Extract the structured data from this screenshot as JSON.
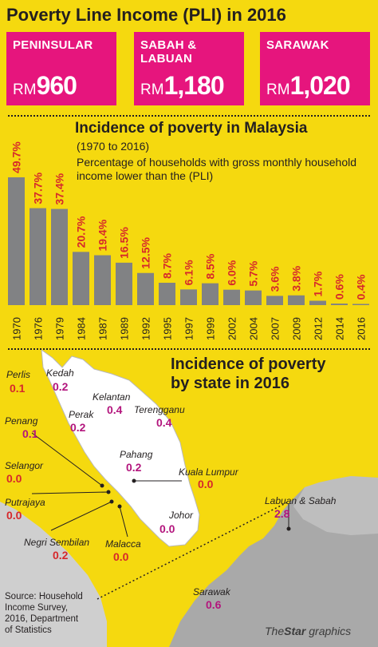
{
  "pli": {
    "title": "Poverty Line Income (PLI) in 2016",
    "boxes": [
      {
        "name_line1": "PENINSULAR",
        "name_line2": "",
        "currency": "RM",
        "value": "960"
      },
      {
        "name_line1": "SABAH &",
        "name_line2": "LABUAN",
        "currency": "RM",
        "value": "1,180"
      },
      {
        "name_line1": "SARAWAK",
        "name_line2": "",
        "currency": "RM",
        "value": "1,020"
      }
    ]
  },
  "chart_title": "Incidence of poverty in Malaysia",
  "chart_years": "(1970 to 2016)",
  "chart_desc_line1": "Percentage of households with gross monthly household",
  "chart_desc_line2": "income lower than the (PLI)",
  "chart_data": {
    "type": "bar",
    "title": "Incidence of poverty in Malaysia",
    "categories": [
      "1970",
      "1976",
      "1979",
      "1984",
      "1987",
      "1989",
      "1992",
      "1995",
      "1997",
      "1999",
      "2002",
      "2004",
      "2007",
      "2009",
      "2012",
      "2014",
      "2016"
    ],
    "values": [
      49.7,
      37.7,
      37.4,
      20.7,
      19.4,
      16.5,
      12.5,
      8.7,
      6.1,
      8.5,
      6.0,
      5.7,
      3.6,
      3.8,
      1.7,
      0.6,
      0.4
    ],
    "data_labels": [
      "49.7%",
      "37.7%",
      "37.4%",
      "20.7%",
      "19.4%",
      "16.5%",
      "12.5%",
      "8.7%",
      "6.1%",
      "8.5%",
      "6.0%",
      "5.7%",
      "3.6%",
      "3.8%",
      "1.7%",
      "0.6%",
      "0.4%"
    ],
    "xlabel": "",
    "ylabel": "",
    "ylim": [
      0,
      55
    ],
    "bar_color": "#818284",
    "label_color": "#d6282b"
  },
  "map": {
    "title_line1": "Incidence of poverty",
    "title_line2": "by state in 2016",
    "states": [
      {
        "name": "Perlis",
        "value": "0.1",
        "color": "red"
      },
      {
        "name": "Kedah",
        "value": "0.2",
        "color": "mag"
      },
      {
        "name": "Penang",
        "value": "0.1",
        "color": "mag"
      },
      {
        "name": "Perak",
        "value": "0.2",
        "color": "mag"
      },
      {
        "name": "Kelantan",
        "value": "0.4",
        "color": "mag"
      },
      {
        "name": "Terengganu",
        "value": "0.4",
        "color": "mag"
      },
      {
        "name": "Pahang",
        "value": "0.2",
        "color": "mag"
      },
      {
        "name": "Selangor",
        "value": "0.0",
        "color": "red"
      },
      {
        "name": "Kuala Lumpur",
        "value": "0.0",
        "color": "red"
      },
      {
        "name": "Putrajaya",
        "value": "0.0",
        "color": "red"
      },
      {
        "name": "Johor",
        "value": "0.0",
        "color": "mag"
      },
      {
        "name": "Negri Sembilan",
        "value": "0.2",
        "color": "red"
      },
      {
        "name": "Malacca",
        "value": "0.0",
        "color": "red"
      },
      {
        "name": "Labuan & Sabah",
        "value": "2.8",
        "color": "mag"
      },
      {
        "name": "Sarawak",
        "value": "0.6",
        "color": "mag"
      }
    ]
  },
  "source": {
    "line1": "Source: Household",
    "line2": "Income Survey,",
    "line3": "2016, Department",
    "line4": "of Statistics"
  },
  "brand": {
    "the": "The",
    "star": "Star",
    "graphics": "graphics"
  }
}
